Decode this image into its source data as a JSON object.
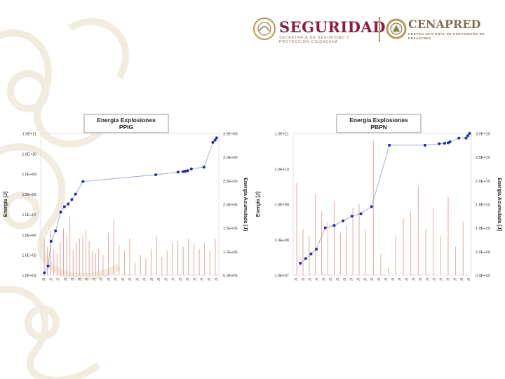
{
  "header": {
    "brand_left": "SEGURIDAD",
    "brand_left_sub": "SECRETARÍA DE SEGURIDAD Y PROTECCIÓN CIUDADANA",
    "brand_right": "CENAPRED",
    "brand_right_sub": "CENTRO NACIONAL DE PREVENCIÓN DE DESASTRES"
  },
  "chart_data": [
    {
      "type": "bar+line",
      "title": "Energía Explosiones PPIG",
      "ylabel": "Energía [J]",
      "y2label": "Energía Acumulada [J]",
      "left_ticks": [
        "1.0E+04",
        "1.0E+05",
        "1.0E+06",
        "1.0E+07",
        "1.0E+08",
        "1.0E+09",
        "1.0E+10",
        "1.0E+11"
      ],
      "right_ticks": [
        "5.0E+05",
        "1.0E+06",
        "1.5E+06",
        "2.0E+06",
        "2.5E+06",
        "3.0E+06",
        "3.5E+06"
      ],
      "x_ticks": [
        "16/02/19",
        "24/02/19",
        "01/03/19",
        "09/03/19",
        "11/03/19",
        "14/03/19",
        "18/03/19",
        "21/03/19",
        "25/03/19",
        "30/03/19",
        "06/04/19",
        "12/04/19",
        "17/04/19",
        "20/04/19",
        "23/04/19",
        "25/04/19",
        "28/04/19",
        "30/04/19",
        "02/05/19",
        "07/05/19",
        "04/06/19",
        "06/06/19",
        "14/06/19",
        "18/06/19",
        "22/06/19"
      ],
      "bars_log10": [
        5.8,
        5.4,
        6.2,
        5.3,
        5.1,
        5.6,
        6.3,
        5.9,
        6.9,
        5.2,
        5.6,
        5.8,
        5.9,
        6.2,
        5.7,
        5.2,
        5.1,
        5.3,
        5.0,
        6.1,
        6.7,
        5.5,
        5.2,
        5.8,
        4.6,
        5.0,
        4.8,
        5.3,
        5.9,
        4.9,
        5.2,
        5.6,
        5.7,
        5.4,
        5.8,
        5.5,
        5.3,
        5.6,
        5.2,
        5.8
      ],
      "cumulative": [
        [
          0.05,
          0.45
        ],
        [
          0.1,
          0.6
        ],
        [
          0.14,
          1.15
        ],
        [
          0.2,
          1.38
        ],
        [
          0.27,
          1.8
        ],
        [
          0.32,
          1.92
        ],
        [
          0.37,
          1.98
        ],
        [
          0.42,
          2.08
        ],
        [
          0.47,
          2.2
        ],
        [
          0.57,
          2.48
        ],
        [
          1.55,
          2.63
        ],
        [
          1.85,
          2.69
        ],
        [
          1.92,
          2.7
        ],
        [
          1.95,
          2.71
        ],
        [
          1.98,
          2.72
        ],
        [
          2.03,
          2.76
        ],
        [
          2.2,
          2.8
        ],
        [
          2.32,
          3.35
        ],
        [
          2.35,
          3.4
        ],
        [
          2.37,
          3.45
        ]
      ],
      "x_max": 2.4,
      "right_range": [
        0.4,
        3.55
      ]
    },
    {
      "type": "bar+line",
      "title": "Energía Explosiones PBPN",
      "ylabel": "Energía [J]",
      "y2label": "Energía Acumulada [J]",
      "left_ticks": [
        "1.0E+07",
        "1.0E+08",
        "1.0E+09",
        "1.0E+10",
        "1.0E+11"
      ],
      "right_ticks": [
        "0.0E+00",
        "5.0E+09",
        "1.0E+10",
        "1.5E+10",
        "2.0E+10",
        "2.5E+10",
        "3.0E+10"
      ],
      "x_ticks": [
        "16/02/19",
        "24/02/19",
        "01/03/19",
        "05/03/19",
        "09/03/19",
        "11/03/19",
        "14/03/19",
        "18/03/19",
        "21/03/19",
        "25/03/19",
        "30/03/19",
        "06/04/19",
        "12/04/19",
        "17/04/19",
        "20/04/19",
        "23/04/19",
        "25/04/19",
        "28/04/19",
        "30/04/19",
        "02/05/19",
        "07/05/19",
        "04/06/19",
        "06/06/19",
        "14/06/19",
        "18/06/19",
        "22/06/19"
      ],
      "bars_log10": [
        9.6,
        8.3,
        8.1,
        9.3,
        8.8,
        8.5,
        9.1,
        8.2,
        8.4,
        8.9,
        9.0,
        8.3,
        10.8,
        7.6,
        7.2,
        8.1,
        8.6,
        8.8,
        9.5,
        8.3,
        8.9,
        8.1,
        9.2,
        7.8,
        8.5
      ],
      "cumulative": [
        [
          0.04,
          0.25
        ],
        [
          0.07,
          0.35
        ],
        [
          0.1,
          0.45
        ],
        [
          0.13,
          0.55
        ],
        [
          0.18,
          1.0
        ],
        [
          0.23,
          1.05
        ],
        [
          0.28,
          1.15
        ],
        [
          0.33,
          1.25
        ],
        [
          0.38,
          1.3
        ],
        [
          0.44,
          1.45
        ],
        [
          0.54,
          2.75
        ],
        [
          0.74,
          2.75
        ],
        [
          0.82,
          2.78
        ],
        [
          0.85,
          2.79
        ],
        [
          0.87,
          2.8
        ],
        [
          0.88,
          2.82
        ],
        [
          0.93,
          2.9
        ],
        [
          0.97,
          2.9
        ],
        [
          0.98,
          2.95
        ],
        [
          0.99,
          3.0
        ]
      ],
      "x_max": 1.0,
      "right_range": [
        0.0,
        3.0
      ]
    }
  ],
  "colors": {
    "bar": "#e8a59a",
    "line": "#9ea7c9",
    "point": "#1c2bb0",
    "brand": "#8a1d3e",
    "gold": "#b8975a"
  }
}
